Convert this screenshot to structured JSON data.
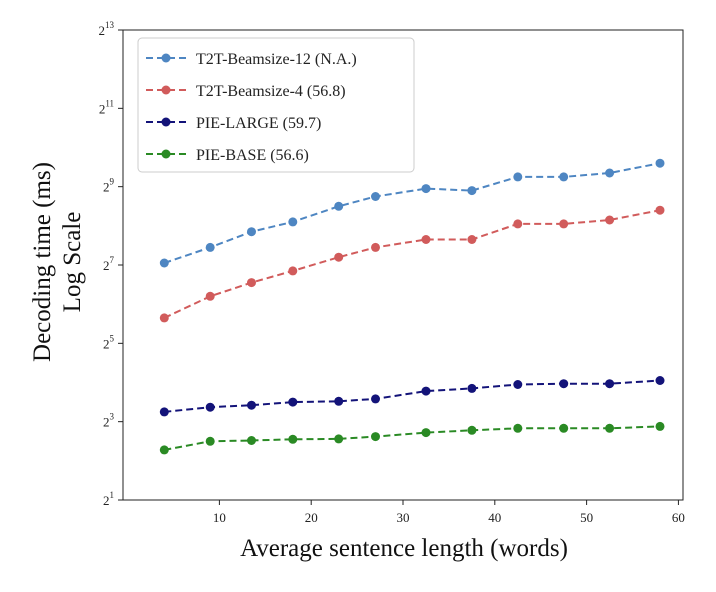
{
  "chart_data": {
    "type": "line",
    "title": "",
    "xlabel": "Average sentence length (words)",
    "ylabel_line1": "Decoding time (ms)",
    "ylabel_line2": "Log Scale",
    "y_scale": "log2",
    "xlim": [
      -0.5,
      60.5
    ],
    "ylim_log2": [
      1,
      13
    ],
    "x_ticks": [
      10,
      20,
      30,
      40,
      50,
      60
    ],
    "x_tick_labels": [
      "10",
      "20",
      "30",
      "40",
      "50",
      "60"
    ],
    "y_ticks_exp": [
      1,
      3,
      5,
      7,
      9,
      11,
      13
    ],
    "y_tick_base": "2",
    "y_tick_exp_labels": [
      "1",
      "3",
      "5",
      "7",
      "9",
      "11",
      "13"
    ],
    "grid": false,
    "legend_position": "top-left",
    "x": [
      4,
      9,
      13.5,
      18,
      23,
      27,
      32.5,
      37.5,
      42.5,
      47.5,
      52.5,
      58
    ],
    "series": [
      {
        "name": "T2T-Beamsize-12 (N.A.)",
        "color": "#4e86c2",
        "values_log2": [
          7.05,
          7.45,
          7.85,
          8.1,
          8.5,
          8.75,
          8.95,
          8.9,
          9.25,
          9.25,
          9.35,
          9.6
        ]
      },
      {
        "name": "T2T-Beamsize-4 (56.8)",
        "color": "#d15b5b",
        "values_log2": [
          5.65,
          6.2,
          6.55,
          6.85,
          7.2,
          7.45,
          7.65,
          7.65,
          8.05,
          8.05,
          8.15,
          8.4
        ]
      },
      {
        "name": "PIE-LARGE (59.7)",
        "color": "#131379",
        "values_log2": [
          3.25,
          3.37,
          3.42,
          3.5,
          3.52,
          3.58,
          3.78,
          3.85,
          3.95,
          3.97,
          3.97,
          4.05
        ]
      },
      {
        "name": "PIE-BASE (56.6)",
        "color": "#2a8a24",
        "values_log2": [
          2.28,
          2.5,
          2.52,
          2.55,
          2.56,
          2.62,
          2.72,
          2.78,
          2.83,
          2.83,
          2.83,
          2.88
        ]
      }
    ]
  }
}
